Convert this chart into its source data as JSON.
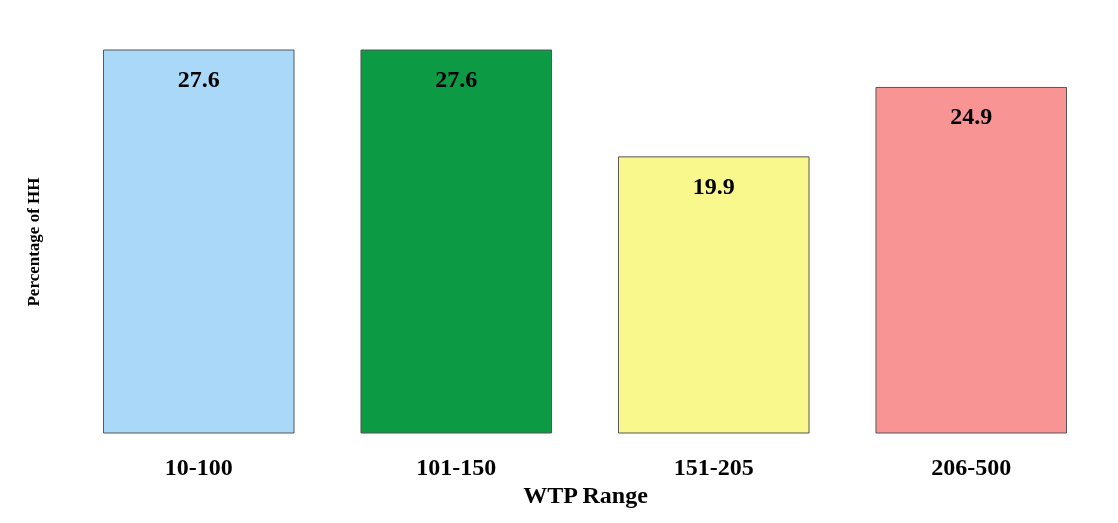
{
  "chart_data": {
    "type": "bar",
    "xlabel": "WTP Range",
    "ylabel": "Percentage of HH",
    "categories": [
      "10-100",
      "101-150",
      "151-205",
      "206-500"
    ],
    "values": [
      27.6,
      27.6,
      19.9,
      24.9
    ],
    "colors": [
      "#aad8f8",
      "#0c9a44",
      "#f8f88c",
      "#f89494"
    ],
    "data_labels": true,
    "grid": false,
    "legend": false,
    "tick_labels": "x"
  }
}
